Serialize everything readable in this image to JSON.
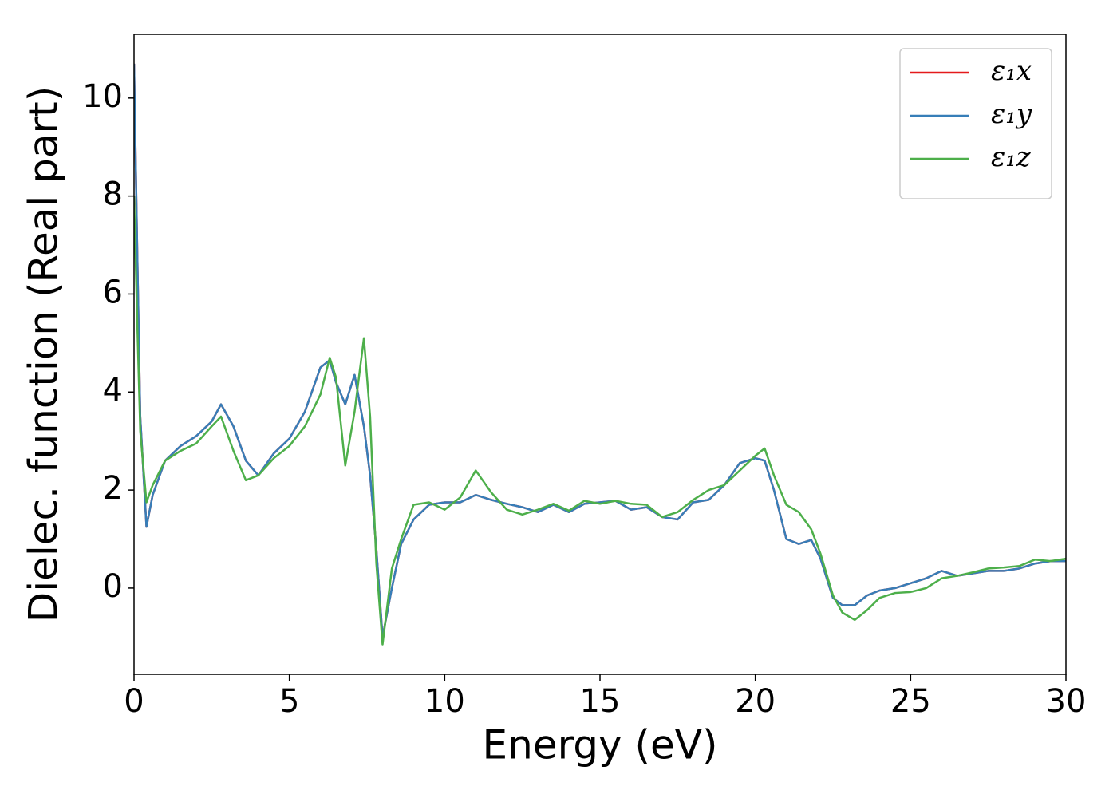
{
  "chart_data": {
    "type": "line",
    "xlabel": "Energy (eV)",
    "ylabel": "Dielec. function (Real part)",
    "x": [
      0,
      0.1,
      0.2,
      0.4,
      0.6,
      1,
      1.5,
      2,
      2.5,
      2.8,
      3.2,
      3.6,
      4,
      4.5,
      5,
      5.5,
      6,
      6.3,
      6.5,
      6.8,
      7.1,
      7.4,
      7.6,
      7.8,
      8,
      8.3,
      8.6,
      9,
      9.5,
      10,
      10.5,
      11,
      11.5,
      12,
      12.5,
      13,
      13.5,
      14,
      14.5,
      15,
      15.5,
      16,
      16.5,
      17,
      17.5,
      18,
      18.5,
      19,
      19.5,
      20,
      20.3,
      20.6,
      21,
      21.4,
      21.8,
      22.1,
      22.5,
      22.8,
      23.2,
      23.6,
      24,
      24.5,
      25,
      25.5,
      26,
      26.5,
      27,
      27.5,
      28,
      28.5,
      29,
      29.5,
      30
    ],
    "series": [
      {
        "name": "ε₁x",
        "color": "#e41a1c",
        "values": [
          10.7,
          7,
          3.5,
          1.25,
          1.9,
          2.6,
          2.9,
          3.1,
          3.4,
          3.75,
          3.3,
          2.6,
          2.3,
          2.75,
          3.05,
          3.6,
          4.5,
          4.65,
          4.2,
          3.75,
          4.35,
          3.3,
          2.3,
          0.8,
          -1.0,
          0.0,
          0.9,
          1.4,
          1.7,
          1.75,
          1.75,
          1.9,
          1.8,
          1.72,
          1.65,
          1.55,
          1.7,
          1.55,
          1.72,
          1.75,
          1.78,
          1.6,
          1.65,
          1.45,
          1.4,
          1.75,
          1.8,
          2.1,
          2.55,
          2.65,
          2.6,
          2.0,
          1.0,
          0.9,
          0.98,
          0.6,
          -0.2,
          -0.35,
          -0.35,
          -0.15,
          -0.05,
          0.0,
          0.1,
          0.2,
          0.35,
          0.25,
          0.3,
          0.35,
          0.35,
          0.4,
          0.5,
          0.55,
          0.55
        ]
      },
      {
        "name": "ε₁y",
        "color": "#377eb8",
        "values": [
          10.7,
          7,
          3.5,
          1.25,
          1.9,
          2.6,
          2.9,
          3.1,
          3.4,
          3.75,
          3.3,
          2.6,
          2.3,
          2.75,
          3.05,
          3.6,
          4.5,
          4.65,
          4.2,
          3.75,
          4.35,
          3.3,
          2.3,
          0.8,
          -1.0,
          0.0,
          0.9,
          1.4,
          1.7,
          1.75,
          1.75,
          1.9,
          1.8,
          1.72,
          1.65,
          1.55,
          1.7,
          1.55,
          1.72,
          1.75,
          1.78,
          1.6,
          1.65,
          1.45,
          1.4,
          1.75,
          1.8,
          2.1,
          2.55,
          2.65,
          2.6,
          2.0,
          1.0,
          0.9,
          0.98,
          0.6,
          -0.2,
          -0.35,
          -0.35,
          -0.15,
          -0.05,
          0.0,
          0.1,
          0.2,
          0.35,
          0.25,
          0.3,
          0.35,
          0.35,
          0.4,
          0.5,
          0.55,
          0.55
        ]
      },
      {
        "name": "ε₁z",
        "color": "#4daf4a",
        "values": [
          8,
          5.5,
          3.2,
          1.75,
          2.1,
          2.6,
          2.8,
          2.95,
          3.3,
          3.5,
          2.8,
          2.2,
          2.3,
          2.65,
          2.9,
          3.3,
          3.95,
          4.7,
          4.3,
          2.5,
          3.6,
          5.1,
          3.5,
          0.5,
          -1.15,
          0.4,
          1.0,
          1.7,
          1.75,
          1.6,
          1.85,
          2.4,
          1.95,
          1.6,
          1.5,
          1.6,
          1.72,
          1.58,
          1.78,
          1.72,
          1.78,
          1.72,
          1.7,
          1.45,
          1.55,
          1.8,
          2.0,
          2.1,
          2.4,
          2.7,
          2.85,
          2.3,
          1.7,
          1.55,
          1.2,
          0.7,
          -0.15,
          -0.5,
          -0.65,
          -0.45,
          -0.2,
          -0.1,
          -0.08,
          0.0,
          0.2,
          0.25,
          0.32,
          0.4,
          0.42,
          0.45,
          0.58,
          0.55,
          0.6
        ]
      }
    ],
    "xlim": [
      0,
      30
    ],
    "xticks": [
      0,
      5,
      10,
      15,
      20,
      25,
      30
    ],
    "ylim": [
      -1.76,
      11.3
    ],
    "yticks": [
      0,
      2,
      4,
      6,
      8,
      10
    ],
    "grid": false,
    "legend": "upper right"
  }
}
